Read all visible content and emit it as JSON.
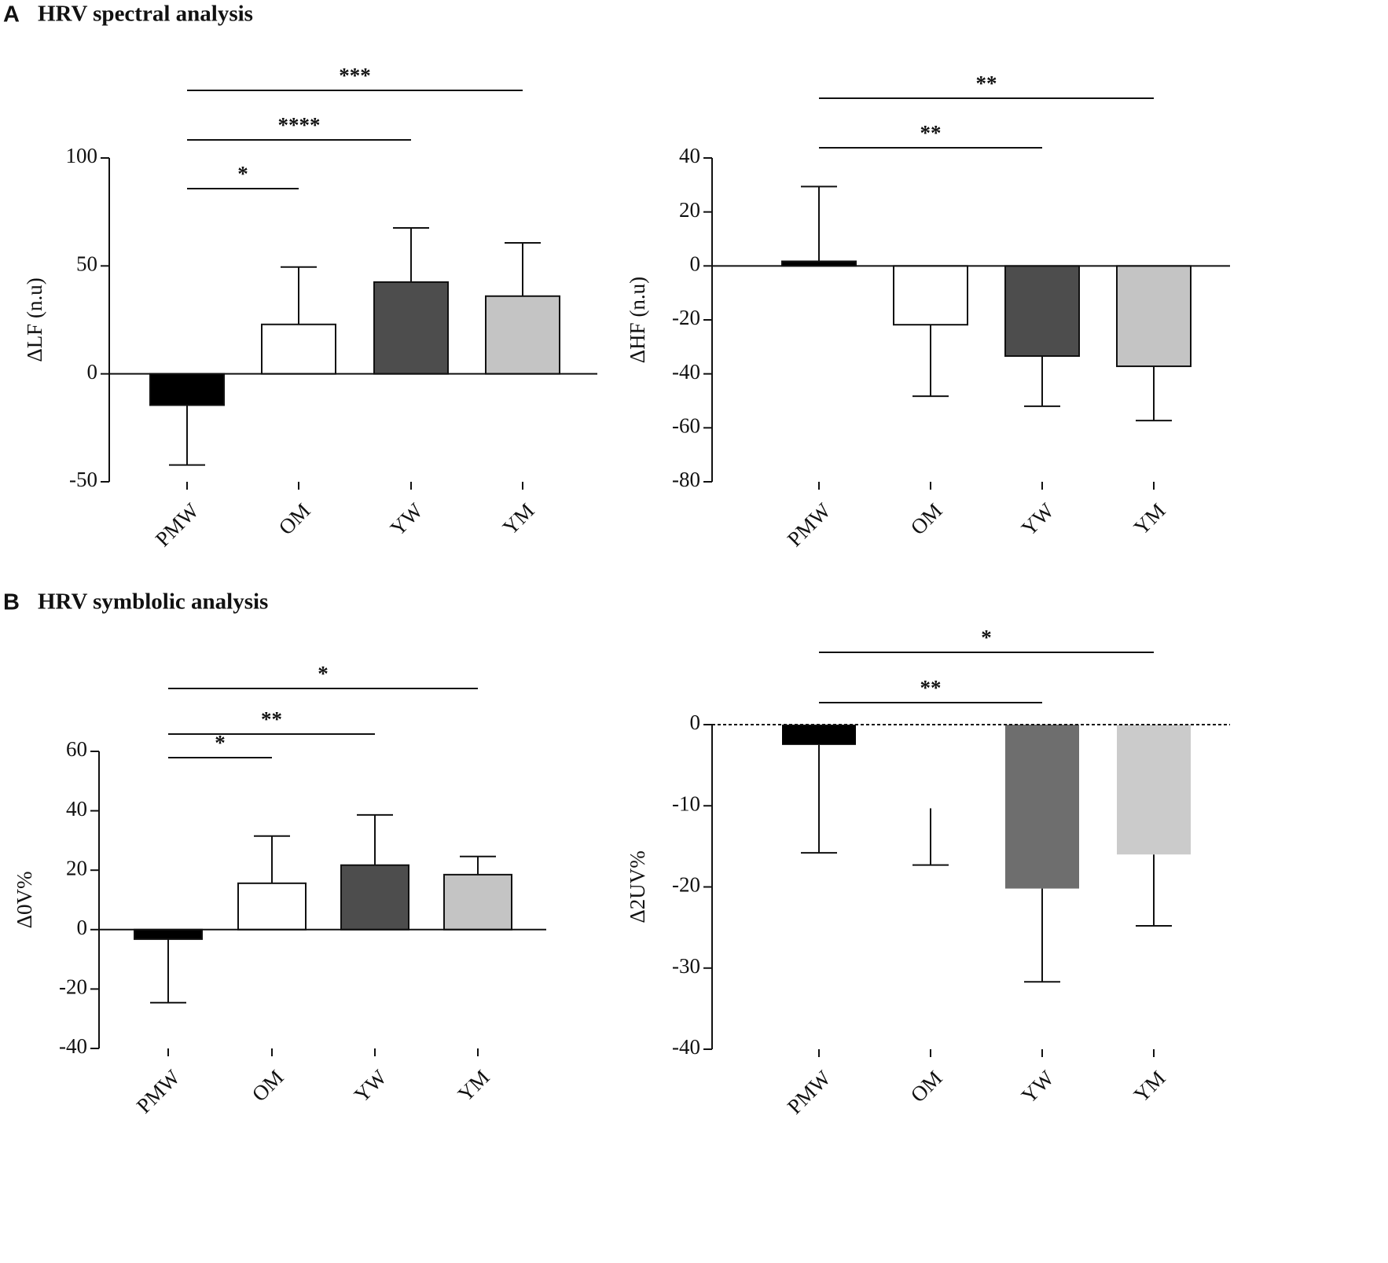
{
  "sections": [
    {
      "letter": "A",
      "title": "HRV spectral analysis"
    },
    {
      "letter": "B",
      "title": "HRV symblolic  analysis"
    }
  ],
  "chart_data": [
    {
      "type": "bar",
      "ylabel": "ΔLF (n.u)",
      "categories": [
        "PMW",
        "OM",
        "YW",
        "YM"
      ],
      "values": [
        -14.5,
        22.9,
        42.5,
        36
      ],
      "errors": [
        27.7,
        26.6,
        25.1,
        24.7
      ],
      "colors": [
        "#000000",
        "#ffffff",
        "#4d4d4d",
        "#c4c4c4"
      ],
      "bar_outline": true,
      "zero_line": "solid",
      "ylim": [
        -50,
        100
      ],
      "yticks": [
        -50,
        0,
        50,
        100
      ],
      "annotations": [
        {
          "from": 0,
          "to": 1,
          "label": "*"
        },
        {
          "from": 0,
          "to": 2,
          "label": "****"
        },
        {
          "from": 0,
          "to": 3,
          "label": "***"
        }
      ]
    },
    {
      "type": "bar",
      "ylabel": "ΔHF (n.u)",
      "categories": [
        "PMW",
        "OM",
        "YW",
        "YM"
      ],
      "values": [
        1.7,
        -21.8,
        -33.4,
        -37.2
      ],
      "errors": [
        27.7,
        26.5,
        18.6,
        20.1
      ],
      "colors": [
        "#000000",
        "#ffffff",
        "#4d4d4d",
        "#c4c4c4"
      ],
      "bar_outline": true,
      "zero_line": "solid",
      "ylim": [
        -80,
        40
      ],
      "yticks": [
        -80,
        -60,
        -40,
        -20,
        0,
        20,
        40
      ],
      "annotations": [
        {
          "from": 0,
          "to": 2,
          "label": "**"
        },
        {
          "from": 0,
          "to": 3,
          "label": "**"
        }
      ]
    },
    {
      "type": "bar",
      "ylabel": "Δ0V%",
      "categories": [
        "PMW",
        "OM",
        "YW",
        "YM"
      ],
      "values": [
        -3.2,
        15.6,
        21.7,
        18.5
      ],
      "errors": [
        21.4,
        15.9,
        16.9,
        6.1
      ],
      "colors": [
        "#000000",
        "#ffffff",
        "#4d4d4d",
        "#c4c4c4"
      ],
      "bar_outline": true,
      "zero_line": "solid",
      "ylim": [
        -40,
        60
      ],
      "yticks": [
        -40,
        -20,
        0,
        20,
        40,
        60
      ],
      "annotations": [
        {
          "from": 0,
          "to": 1,
          "label": "*"
        },
        {
          "from": 0,
          "to": 2,
          "label": "**"
        },
        {
          "from": 0,
          "to": 3,
          "label": "*"
        }
      ]
    },
    {
      "type": "bar",
      "ylabel": "Δ2UV%",
      "categories": [
        "PMW",
        "OM",
        "YW",
        "YM"
      ],
      "values": [
        -2.5,
        -10.3,
        -20.2,
        -16
      ],
      "errors": [
        13.3,
        7.0,
        11.5,
        8.8
      ],
      "colors": [
        "#000000",
        "#ffffff",
        "#6e6e6e",
        "#cbcbcb"
      ],
      "bar_outline": false,
      "zero_line": "dashed",
      "ylim": [
        -40,
        0
      ],
      "yticks": [
        -40,
        -30,
        -20,
        -10,
        0
      ],
      "annotations": [
        {
          "from": 0,
          "to": 2,
          "label": "**"
        },
        {
          "from": 0,
          "to": 3,
          "label": "*"
        }
      ]
    }
  ]
}
